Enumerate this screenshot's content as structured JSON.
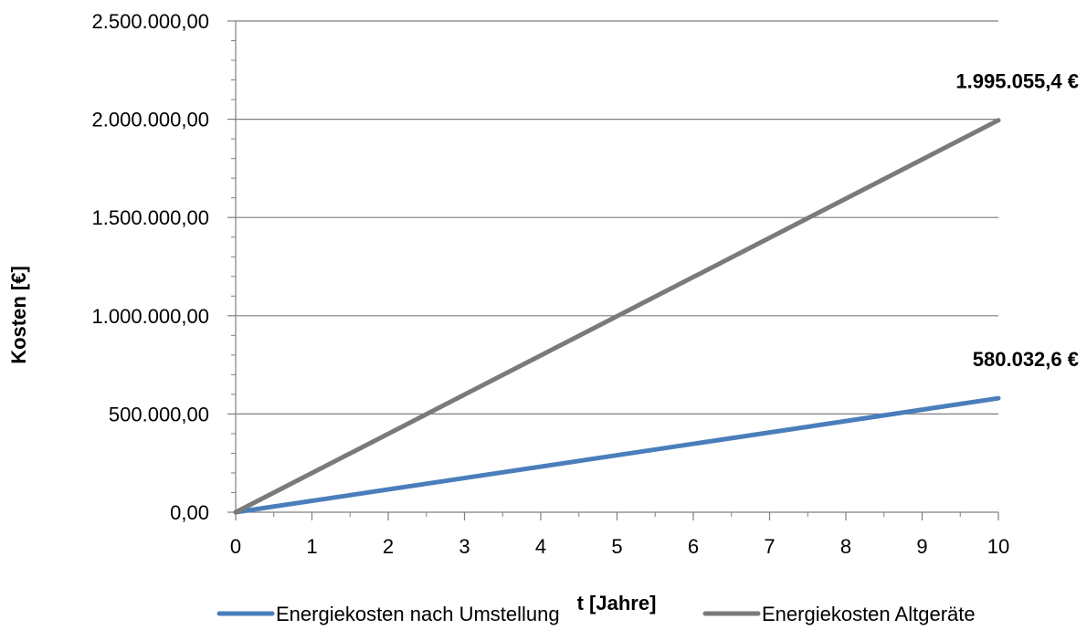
{
  "chart_data": {
    "type": "line",
    "title": "",
    "xlabel": "t [Jahre]",
    "ylabel": "Kosten [€]",
    "x": [
      0,
      10
    ],
    "xlim": [
      0,
      10
    ],
    "xticks": [
      "0",
      "1",
      "2",
      "3",
      "4",
      "5",
      "6",
      "7",
      "8",
      "9",
      "10"
    ],
    "ylim": [
      0,
      2500000
    ],
    "yticks": [
      "0,00",
      "500.000,00",
      "1.000.000,00",
      "1.500.000,00",
      "2.000.000,00",
      "2.500.000,00"
    ],
    "grid": "horizontal",
    "legend_position": "bottom",
    "series": [
      {
        "name": "Energiekosten nach Umstellung",
        "color": "#4a7ebb",
        "values": [
          0,
          580032.6
        ],
        "end_label": "580.032,6 €"
      },
      {
        "name": "Energiekosten Altgeräte",
        "color": "#7a7a7a",
        "values": [
          0,
          1995055.4
        ],
        "end_label": "1.995.055,4 €"
      }
    ]
  }
}
